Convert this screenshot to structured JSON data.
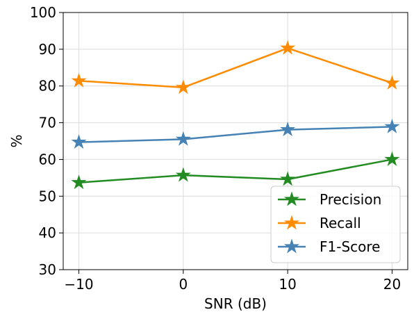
{
  "chart_data": {
    "type": "line",
    "title": "",
    "xlabel": "SNR (dB)",
    "ylabel": "%",
    "x": [
      -10,
      0,
      10,
      20
    ],
    "x_ticks": [
      -10,
      0,
      10,
      20
    ],
    "x_tick_labels": [
      "−10",
      "0",
      "10",
      "20"
    ],
    "xlim": [
      -11.5,
      21.5
    ],
    "ylim": [
      30,
      100
    ],
    "y_ticks": [
      30,
      40,
      50,
      60,
      70,
      80,
      90,
      100
    ],
    "y_tick_labels": [
      "30",
      "40",
      "50",
      "60",
      "70",
      "80",
      "90",
      "100"
    ],
    "grid": true,
    "legend_position": "lower-right",
    "marker": "star",
    "series": [
      {
        "name": "Precision",
        "color": "#228b22",
        "values": [
          53.7,
          55.7,
          54.6,
          60.0
        ]
      },
      {
        "name": "Recall",
        "color": "#ff8c00",
        "values": [
          81.4,
          79.6,
          90.3,
          80.8
        ]
      },
      {
        "name": "F1-Score",
        "color": "#4682b4",
        "values": [
          64.7,
          65.5,
          68.1,
          68.9
        ]
      }
    ]
  }
}
